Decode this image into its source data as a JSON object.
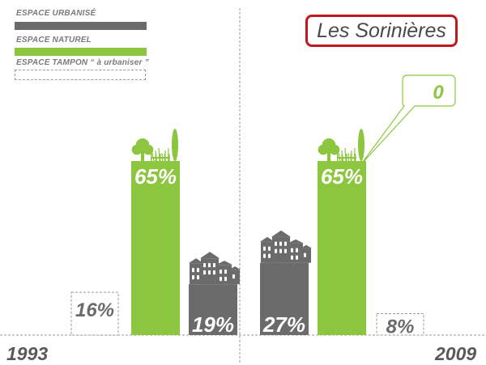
{
  "title": "Les Sorinières",
  "legend": [
    {
      "label": "ESPACE URBANISÉ",
      "color": "#6b6b6b",
      "style": "solid"
    },
    {
      "label": "ESPACE NATUREL",
      "color": "#8cc63f",
      "style": "solid"
    },
    {
      "label": "ESPACE TAMPON “ à urbaniser ”",
      "color": "#9a9a9a",
      "style": "dashed"
    }
  ],
  "colors": {
    "urbanise": "#6b6b6b",
    "naturel": "#8cc63f",
    "tampon": "#9a9a9a",
    "title_border": "#c0181f"
  },
  "chart_data": {
    "type": "bar",
    "title": "Les Sorinières",
    "categories": [
      "1993",
      "2009"
    ],
    "series": [
      {
        "name": "ESPACE TAMPON “ à urbaniser ”",
        "values": [
          16,
          8
        ],
        "labels": [
          "16%",
          "8%"
        ]
      },
      {
        "name": "ESPACE NATUREL",
        "values": [
          65,
          65
        ],
        "labels": [
          "65%",
          "65%"
        ]
      },
      {
        "name": "ESPACE URBANISÉ",
        "values": [
          19,
          27
        ],
        "labels": [
          "19%",
          "27%"
        ]
      }
    ],
    "annotation": "0",
    "unit": "%"
  }
}
